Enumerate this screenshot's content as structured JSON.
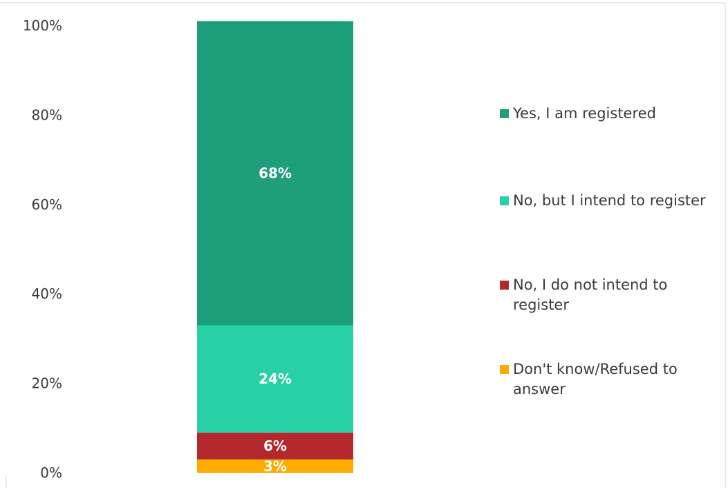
{
  "chart_data": {
    "type": "bar",
    "stacked": true,
    "orientation": "vertical",
    "categories": [
      ""
    ],
    "series": [
      {
        "name": "Don't know/Refused to answer",
        "values": [
          3
        ],
        "label": "3%",
        "color": "#ffab00"
      },
      {
        "name": "No, I do not intend to register",
        "values": [
          6
        ],
        "label": "6%",
        "color": "#b3282d"
      },
      {
        "name": "No, but I intend to register",
        "values": [
          24
        ],
        "label": "24%",
        "color": "#27d1a5"
      },
      {
        "name": "Yes, I am registered",
        "values": [
          68
        ],
        "label": "68%",
        "color": "#1e9e7a"
      }
    ],
    "ylim": [
      0,
      100
    ],
    "yticks": [
      0,
      20,
      40,
      60,
      80,
      100
    ],
    "ytick_labels": [
      "0%",
      "20%",
      "40%",
      "60%",
      "80%",
      "100%"
    ],
    "legend": {
      "placement": "right",
      "order": [
        "Yes, I am registered",
        "No, but I intend to register",
        "No, I do not intend to register",
        "Don't know/Refused to answer"
      ]
    },
    "grid": false,
    "title": "",
    "xlabel": "",
    "ylabel": ""
  }
}
